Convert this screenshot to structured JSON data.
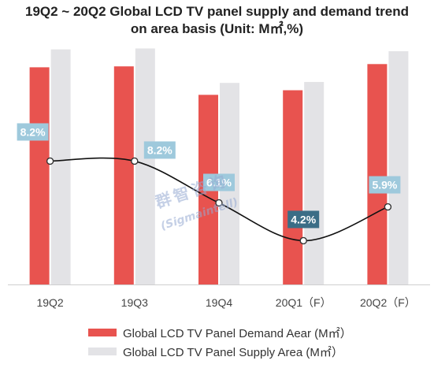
{
  "chart_data": {
    "type": "bar",
    "title_line1": "19Q2 ~ 20Q2 Global LCD TV panel supply and demand trend",
    "title_line2": "on area basis (Unit: M㎡,%)",
    "categories": [
      "19Q2",
      "19Q3",
      "19Q4",
      "20Q1（F）",
      "20Q2（F）"
    ],
    "series": [
      {
        "name": "Global LCD TV Panel Demand Aear (M㎡）",
        "values": [
          47.3,
          47.5,
          41.3,
          42.3,
          48.0
        ],
        "color": "#e8534f"
      },
      {
        "name": "Global LCD TV Panel Supply Area (M㎡）",
        "values": [
          51.2,
          51.4,
          43.9,
          44.1,
          50.8
        ],
        "color": "#e3e3e6"
      }
    ],
    "line": {
      "values": [
        8.2,
        8.2,
        6.1,
        4.2,
        5.9
      ],
      "labels": [
        "8.2%",
        "8.2%",
        "6.1%",
        "4.2%",
        "5.9%"
      ],
      "ylim": [
        2,
        14
      ]
    },
    "ylim": [
      0,
      52
    ],
    "label_color": "#9ec9dc",
    "highlight_label_color": "#3b6d86",
    "grid": false
  },
  "watermark": {
    "line1": "群智咨询",
    "line2": "(Sigmaintell)"
  }
}
